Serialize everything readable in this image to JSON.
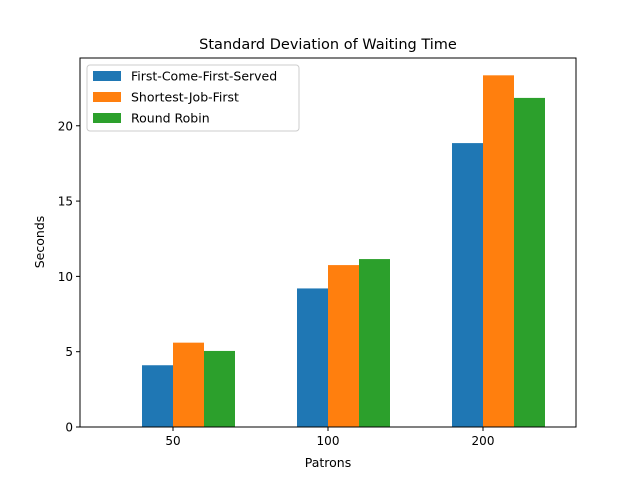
{
  "chart_data": {
    "type": "bar",
    "title": "Standard Deviation of Waiting Time",
    "xlabel": "Patrons",
    "ylabel": "Seconds",
    "categories": [
      "50",
      "100",
      "200"
    ],
    "series": [
      {
        "name": "First-Come-First-Served",
        "color": "#1f77b4",
        "values": [
          4.1,
          9.2,
          18.85
        ]
      },
      {
        "name": "Shortest-Job-First",
        "color": "#ff7f0e",
        "values": [
          5.6,
          10.75,
          23.35
        ]
      },
      {
        "name": "Round Robin",
        "color": "#2ca02c",
        "values": [
          5.05,
          11.15,
          21.85
        ]
      }
    ],
    "ylim": [
      0,
      24.5
    ],
    "yticks": [
      0,
      5,
      10,
      15,
      20
    ],
    "ytick_labels": [
      "0",
      "5",
      "10",
      "15",
      "20"
    ],
    "grid": false,
    "legend_position": "top-left"
  }
}
